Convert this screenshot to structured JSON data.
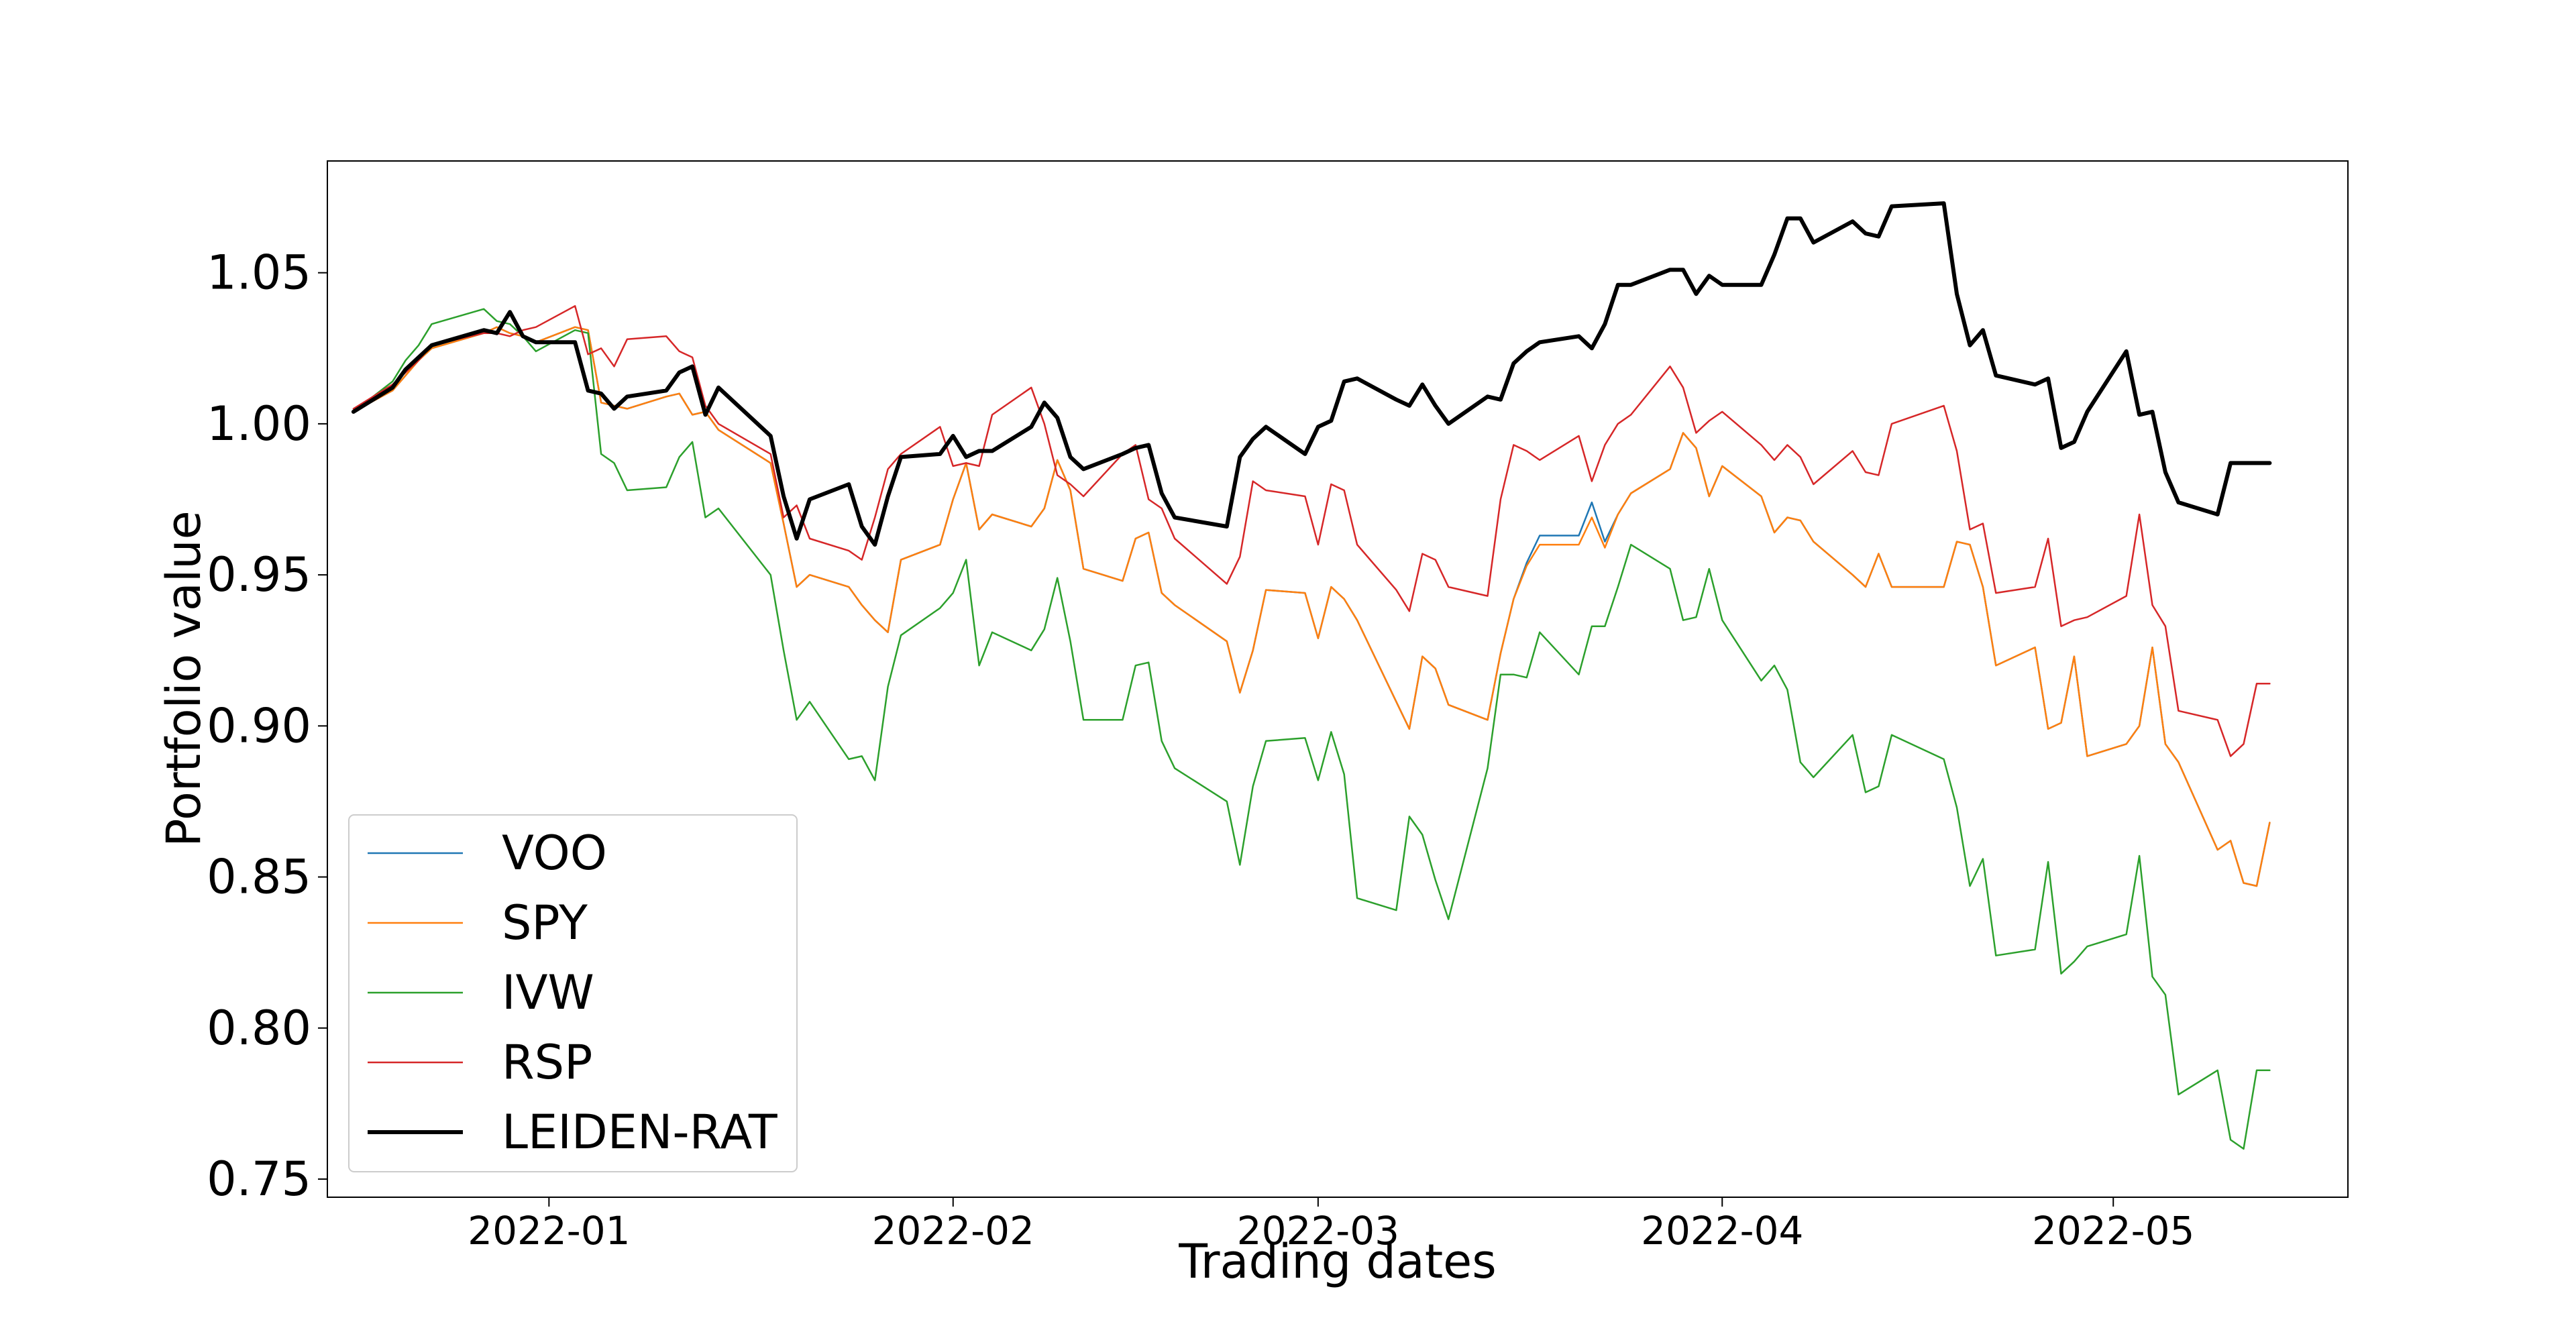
{
  "chart_data": {
    "type": "line",
    "title": "",
    "xlabel": "Trading dates",
    "ylabel": "Portfolio value",
    "xlim": [
      "2021-12-15",
      "2022-05-19"
    ],
    "ylim": [
      0.744,
      1.087
    ],
    "x_ticks": [
      {
        "date": "2022-01-01",
        "label": "2022-01"
      },
      {
        "date": "2022-02-01",
        "label": "2022-02"
      },
      {
        "date": "2022-03-01",
        "label": "2022-03"
      },
      {
        "date": "2022-04-01",
        "label": "2022-04"
      },
      {
        "date": "2022-05-01",
        "label": "2022-05"
      }
    ],
    "y_ticks": [
      {
        "value": 0.75,
        "label": "0.75"
      },
      {
        "value": 0.8,
        "label": "0.80"
      },
      {
        "value": 0.85,
        "label": "0.85"
      },
      {
        "value": 0.9,
        "label": "0.90"
      },
      {
        "value": 0.95,
        "label": "0.95"
      },
      {
        "value": 1.0,
        "label": "1.00"
      },
      {
        "value": 1.05,
        "label": "1.05"
      }
    ],
    "grid": false,
    "legend_position": "lower-left",
    "x": [
      "2021-12-17",
      "2021-12-20",
      "2021-12-21",
      "2021-12-22",
      "2021-12-23",
      "2021-12-27",
      "2021-12-28",
      "2021-12-29",
      "2021-12-30",
      "2021-12-31",
      "2022-01-03",
      "2022-01-04",
      "2022-01-05",
      "2022-01-06",
      "2022-01-07",
      "2022-01-10",
      "2022-01-11",
      "2022-01-12",
      "2022-01-13",
      "2022-01-14",
      "2022-01-18",
      "2022-01-19",
      "2022-01-20",
      "2022-01-21",
      "2022-01-24",
      "2022-01-25",
      "2022-01-26",
      "2022-01-27",
      "2022-01-28",
      "2022-01-31",
      "2022-02-01",
      "2022-02-02",
      "2022-02-03",
      "2022-02-04",
      "2022-02-07",
      "2022-02-08",
      "2022-02-09",
      "2022-02-10",
      "2022-02-11",
      "2022-02-14",
      "2022-02-15",
      "2022-02-16",
      "2022-02-17",
      "2022-02-18",
      "2022-02-22",
      "2022-02-23",
      "2022-02-24",
      "2022-02-25",
      "2022-02-28",
      "2022-03-01",
      "2022-03-02",
      "2022-03-03",
      "2022-03-04",
      "2022-03-07",
      "2022-03-08",
      "2022-03-09",
      "2022-03-10",
      "2022-03-11",
      "2022-03-14",
      "2022-03-15",
      "2022-03-16",
      "2022-03-17",
      "2022-03-18",
      "2022-03-21",
      "2022-03-22",
      "2022-03-23",
      "2022-03-24",
      "2022-03-25",
      "2022-03-28",
      "2022-03-29",
      "2022-03-30",
      "2022-03-31",
      "2022-04-01",
      "2022-04-04",
      "2022-04-05",
      "2022-04-06",
      "2022-04-07",
      "2022-04-08",
      "2022-04-11",
      "2022-04-12",
      "2022-04-13",
      "2022-04-14",
      "2022-04-18",
      "2022-04-19",
      "2022-04-20",
      "2022-04-21",
      "2022-04-22",
      "2022-04-25",
      "2022-04-26",
      "2022-04-27",
      "2022-04-28",
      "2022-04-29",
      "2022-05-02",
      "2022-05-03",
      "2022-05-04",
      "2022-05-05",
      "2022-05-06",
      "2022-05-09",
      "2022-05-10",
      "2022-05-11",
      "2022-05-12",
      "2022-05-13"
    ],
    "series": [
      {
        "name": "VOO",
        "color": "#1f77b4",
        "width": 2.5,
        "values": [
          1.004,
          1.011,
          1.016,
          1.021,
          1.025,
          1.03,
          1.032,
          1.03,
          1.029,
          1.027,
          1.032,
          1.031,
          1.007,
          1.006,
          1.005,
          1.009,
          1.01,
          1.003,
          1.004,
          0.998,
          0.987,
          0.967,
          0.946,
          0.95,
          0.946,
          0.94,
          0.935,
          0.931,
          0.955,
          0.96,
          0.975,
          0.987,
          0.965,
          0.97,
          0.966,
          0.972,
          0.988,
          0.978,
          0.952,
          0.948,
          0.962,
          0.964,
          0.944,
          0.94,
          0.928,
          0.911,
          0.925,
          0.945,
          0.944,
          0.929,
          0.946,
          0.942,
          0.935,
          0.908,
          0.899,
          0.923,
          0.919,
          0.907,
          0.902,
          0.924,
          0.942,
          0.954,
          0.963,
          0.963,
          0.974,
          0.961,
          0.97,
          0.977,
          0.985,
          0.997,
          0.992,
          0.976,
          0.986,
          0.976,
          0.964,
          0.969,
          0.968,
          0.961,
          0.95,
          0.946,
          0.957,
          0.946,
          0.946,
          0.961,
          0.96,
          0.946,
          0.92,
          0.926,
          0.899,
          0.901,
          0.923,
          0.89,
          0.894,
          0.9,
          0.926,
          0.894,
          0.888,
          0.859,
          0.862,
          0.848,
          0.847,
          0.868
        ]
      },
      {
        "name": "SPY",
        "color": "#ff7f0e",
        "width": 2.5,
        "values": [
          1.004,
          1.011,
          1.016,
          1.021,
          1.025,
          1.03,
          1.032,
          1.03,
          1.029,
          1.027,
          1.032,
          1.031,
          1.007,
          1.006,
          1.005,
          1.009,
          1.01,
          1.003,
          1.004,
          0.998,
          0.987,
          0.967,
          0.946,
          0.95,
          0.946,
          0.94,
          0.935,
          0.931,
          0.955,
          0.96,
          0.975,
          0.987,
          0.965,
          0.97,
          0.966,
          0.972,
          0.988,
          0.978,
          0.952,
          0.948,
          0.962,
          0.964,
          0.944,
          0.94,
          0.928,
          0.911,
          0.925,
          0.945,
          0.944,
          0.929,
          0.946,
          0.942,
          0.935,
          0.908,
          0.899,
          0.923,
          0.919,
          0.907,
          0.902,
          0.924,
          0.942,
          0.953,
          0.96,
          0.96,
          0.969,
          0.959,
          0.97,
          0.977,
          0.985,
          0.997,
          0.992,
          0.976,
          0.986,
          0.976,
          0.964,
          0.969,
          0.968,
          0.961,
          0.95,
          0.946,
          0.957,
          0.946,
          0.946,
          0.961,
          0.96,
          0.946,
          0.92,
          0.926,
          0.899,
          0.901,
          0.923,
          0.89,
          0.894,
          0.9,
          0.926,
          0.894,
          0.888,
          0.859,
          0.862,
          0.848,
          0.847,
          0.868
        ]
      },
      {
        "name": "IVW",
        "color": "#2ca02c",
        "width": 2.5,
        "values": [
          1.004,
          1.014,
          1.021,
          1.026,
          1.033,
          1.038,
          1.034,
          1.033,
          1.029,
          1.024,
          1.031,
          1.03,
          0.99,
          0.987,
          0.978,
          0.979,
          0.989,
          0.994,
          0.969,
          0.972,
          0.95,
          0.925,
          0.902,
          0.908,
          0.889,
          0.89,
          0.882,
          0.913,
          0.93,
          0.939,
          0.944,
          0.955,
          0.92,
          0.931,
          0.925,
          0.932,
          0.949,
          0.928,
          0.902,
          0.902,
          0.92,
          0.921,
          0.895,
          0.886,
          0.875,
          0.854,
          0.88,
          0.895,
          0.896,
          0.882,
          0.898,
          0.884,
          0.843,
          0.839,
          0.87,
          0.864,
          0.849,
          0.836,
          0.886,
          0.917,
          0.917,
          0.916,
          0.931,
          0.917,
          0.933,
          0.933,
          0.946,
          0.96,
          0.952,
          0.935,
          0.936,
          0.952,
          0.935,
          0.915,
          0.92,
          0.912,
          0.888,
          0.883,
          0.897,
          0.878,
          0.88,
          0.897,
          0.889,
          0.873,
          0.847,
          0.856,
          0.824,
          0.826,
          0.855,
          0.818,
          0.822,
          0.827,
          0.831,
          0.857,
          0.817,
          0.811,
          0.778,
          0.786,
          0.763,
          0.76,
          0.786,
          0.786
        ]
      },
      {
        "name": "RSP",
        "color": "#d62728",
        "width": 2.5,
        "values": [
          1.005,
          1.013,
          1.017,
          1.021,
          1.026,
          1.03,
          1.03,
          1.029,
          1.031,
          1.032,
          1.039,
          1.023,
          1.025,
          1.019,
          1.028,
          1.029,
          1.024,
          1.022,
          1.006,
          1.0,
          0.99,
          0.969,
          0.973,
          0.962,
          0.958,
          0.955,
          0.969,
          0.985,
          0.99,
          0.999,
          0.986,
          0.987,
          0.986,
          1.003,
          1.012,
          1.0,
          0.983,
          0.98,
          0.976,
          0.99,
          0.993,
          0.975,
          0.972,
          0.962,
          0.947,
          0.956,
          0.981,
          0.978,
          0.976,
          0.96,
          0.98,
          0.978,
          0.96,
          0.945,
          0.938,
          0.957,
          0.955,
          0.946,
          0.943,
          0.975,
          0.993,
          0.991,
          0.988,
          0.996,
          0.981,
          0.993,
          1.0,
          1.003,
          1.019,
          1.012,
          0.997,
          1.001,
          1.004,
          0.993,
          0.988,
          0.993,
          0.989,
          0.98,
          0.991,
          0.984,
          0.983,
          1.0,
          1.006,
          0.991,
          0.965,
          0.967,
          0.944,
          0.946,
          0.962,
          0.933,
          0.935,
          0.936,
          0.943,
          0.97,
          0.94,
          0.933,
          0.905,
          0.902,
          0.89,
          0.894,
          0.914,
          0.914
        ]
      },
      {
        "name": "LEIDEN-RAT",
        "color": "#000000",
        "width": 6,
        "values": [
          1.004,
          1.012,
          1.018,
          1.022,
          1.026,
          1.031,
          1.03,
          1.037,
          1.029,
          1.027,
          1.027,
          1.011,
          1.01,
          1.005,
          1.009,
          1.011,
          1.017,
          1.019,
          1.003,
          1.012,
          0.996,
          0.976,
          0.962,
          0.975,
          0.98,
          0.966,
          0.96,
          0.976,
          0.989,
          0.99,
          0.996,
          0.989,
          0.991,
          0.991,
          0.999,
          1.007,
          1.002,
          0.989,
          0.985,
          0.99,
          0.992,
          0.993,
          0.977,
          0.969,
          0.966,
          0.989,
          0.995,
          0.999,
          0.99,
          0.999,
          1.001,
          1.014,
          1.015,
          1.008,
          1.006,
          1.013,
          1.006,
          1.0,
          1.009,
          1.008,
          1.02,
          1.024,
          1.027,
          1.029,
          1.025,
          1.033,
          1.046,
          1.046,
          1.051,
          1.051,
          1.043,
          1.049,
          1.046,
          1.046,
          1.056,
          1.068,
          1.068,
          1.06,
          1.067,
          1.063,
          1.062,
          1.072,
          1.073,
          1.043,
          1.026,
          1.031,
          1.016,
          1.013,
          1.015,
          0.992,
          0.994,
          1.004,
          1.024,
          1.003,
          1.004,
          0.984,
          0.974,
          0.97,
          0.987,
          0.987,
          0.987,
          0.987
        ]
      }
    ]
  }
}
